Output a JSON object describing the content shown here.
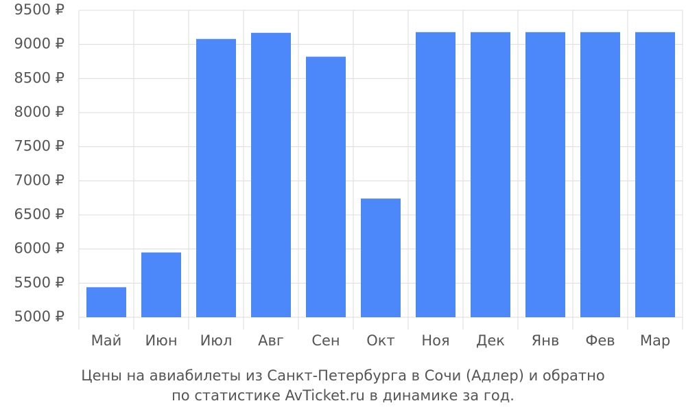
{
  "chart_data": {
    "type": "bar",
    "title": [
      "Цены на авиабилеты из Санкт-Петербурга в Сочи (Адлер) и обратно",
      "по статистике AvTicket.ru в динамике за год."
    ],
    "categories": [
      "Май",
      "Июн",
      "Июл",
      "Авг",
      "Сен",
      "Окт",
      "Ноя",
      "Дек",
      "Янв",
      "Фев",
      "Мар"
    ],
    "values": [
      5440,
      5950,
      9080,
      9170,
      8820,
      6740,
      9180,
      9180,
      9180,
      9180,
      9180
    ],
    "color": "#4d88fb",
    "ylim": [
      5000,
      9500
    ],
    "yticks": [
      {
        "value": 5000,
        "label": "5000 ₽"
      },
      {
        "value": 5500,
        "label": "5500 ₽"
      },
      {
        "value": 6000,
        "label": "6000 ₽"
      },
      {
        "value": 6500,
        "label": "6500 ₽"
      },
      {
        "value": 7000,
        "label": "7000 ₽"
      },
      {
        "value": 7500,
        "label": "7500 ₽"
      },
      {
        "value": 8000,
        "label": "8000 ₽"
      },
      {
        "value": 8500,
        "label": "8500 ₽"
      },
      {
        "value": 9000,
        "label": "9000 ₽"
      },
      {
        "value": 9500,
        "label": "9500 ₽"
      }
    ],
    "grid": true
  }
}
